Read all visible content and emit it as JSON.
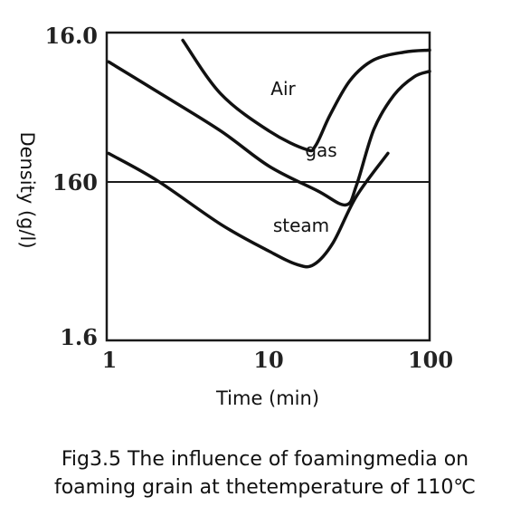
{
  "chart_data": {
    "type": "line",
    "xlabel": "Time (min)",
    "ylabel": "Density (g/l)",
    "xscale": "log",
    "yscale": "log",
    "xlim": [
      1,
      100
    ],
    "ylim": [
      1.6,
      16.0
    ],
    "x_ticks": [
      "1",
      "10",
      "100"
    ],
    "y_ticks": [
      "16.0",
      "160",
      "1.6"
    ],
    "grid": "horizontal line at 160",
    "series": [
      {
        "name": "Air",
        "points": [
          [
            2.9,
            15.3
          ],
          [
            5.0,
            10.2
          ],
          [
            10.0,
            7.7
          ],
          [
            17.0,
            6.7
          ],
          [
            19.5,
            6.9
          ],
          [
            24.0,
            8.7
          ],
          [
            32.0,
            11.3
          ],
          [
            45.0,
            13.2
          ],
          [
            70.0,
            14.0
          ],
          [
            100.0,
            14.2
          ]
        ]
      },
      {
        "name": "gas",
        "points": [
          [
            1.0,
            13.0
          ],
          [
            2.0,
            10.4
          ],
          [
            5.0,
            7.7
          ],
          [
            10.0,
            5.9
          ],
          [
            20.0,
            4.9
          ],
          [
            30.0,
            4.4
          ],
          [
            35.0,
            5.1
          ],
          [
            45.0,
            7.8
          ],
          [
            60.0,
            10.1
          ],
          [
            80.0,
            11.6
          ],
          [
            100.0,
            12.1
          ]
        ]
      },
      {
        "name": "steam",
        "points": [
          [
            1.0,
            6.5
          ],
          [
            2.0,
            5.3
          ],
          [
            5.0,
            3.8
          ],
          [
            10.0,
            3.1
          ],
          [
            15.0,
            2.8
          ],
          [
            19.0,
            2.8
          ],
          [
            25.0,
            3.3
          ],
          [
            35.0,
            4.7
          ],
          [
            55.0,
            6.5
          ]
        ]
      }
    ],
    "series_label_text": [
      "Air",
      "gas",
      "steam"
    ]
  },
  "caption": {
    "line1": "Fig3.5 The influence of foamingmedia on",
    "line2": "foaming grain at thetemperature of 110℃"
  },
  "colors": {
    "ink": "#111111",
    "axis": "#1a1a1a"
  }
}
